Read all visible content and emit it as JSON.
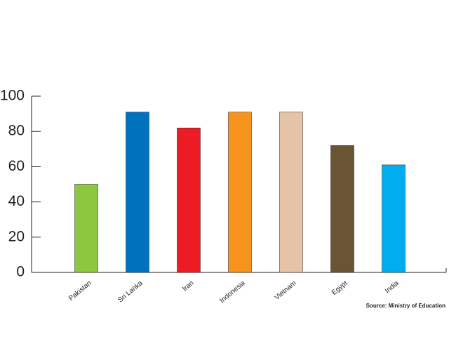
{
  "chart_data": {
    "type": "bar",
    "categories": [
      "Pakistan",
      "Sri Lanka",
      "Iran",
      "Indonesia",
      "Vietnam",
      "Egypt",
      "India"
    ],
    "values": [
      50,
      91,
      82,
      91,
      91,
      72,
      61
    ],
    "colors": [
      "#8dc63f",
      "#0071bc",
      "#ed1c24",
      "#f7941d",
      "#e6c3a6",
      "#6b5434",
      "#00aeef"
    ],
    "ylim": [
      0,
      100
    ],
    "yticks": [
      0,
      20,
      40,
      60,
      80,
      100
    ],
    "source": "Source: Ministry of Education"
  }
}
